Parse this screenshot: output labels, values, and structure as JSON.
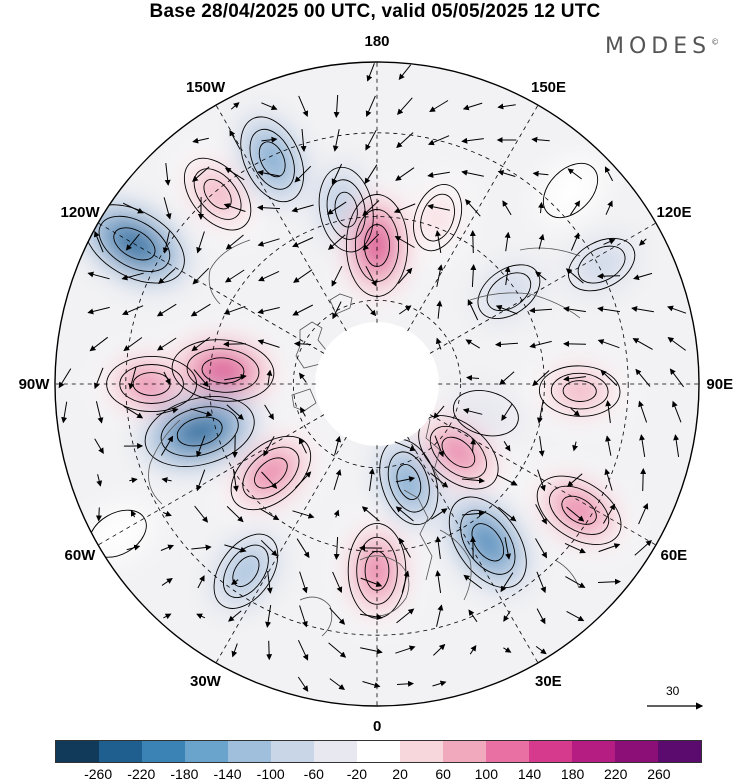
{
  "title": "Base 28/04/2025 00 UTC, valid 05/05/2025 12 UTC",
  "brand": "MODES",
  "brand_mark": "©",
  "longitude_labels": [
    "180",
    "150E",
    "120E",
    "90E",
    "60E",
    "30E",
    "0",
    "30W",
    "60W",
    "90W",
    "120W",
    "150W"
  ],
  "reference_vector": "30",
  "colorbar": {
    "colors": [
      "#10395a",
      "#1f5f8f",
      "#3b82b5",
      "#6aa3cc",
      "#9fbfdc",
      "#c9d6e8",
      "#e8e8f0",
      "#ffffff",
      "#f7d6dc",
      "#f1a9bd",
      "#e870a3",
      "#d63a8d",
      "#b51d83",
      "#8c0f78",
      "#5b0a6e"
    ],
    "tick_labels": [
      "-260",
      "-220",
      "-180",
      "-140",
      "-100",
      "-60",
      "-20",
      "20",
      "60",
      "100",
      "140",
      "180",
      "220",
      "260"
    ]
  },
  "anomaly_centers": [
    {
      "lon": -155,
      "dist": 0.77,
      "value": -150
    },
    {
      "lon": -170,
      "dist": 0.55,
      "value": -130
    },
    {
      "lon": -180,
      "dist": 0.43,
      "value": 200
    },
    {
      "lon": -140,
      "dist": 0.77,
      "value": 120
    },
    {
      "lon": -120,
      "dist": 0.87,
      "value": -230
    },
    {
      "lon": -90,
      "dist": 0.7,
      "value": 150
    },
    {
      "lon": -95,
      "dist": 0.48,
      "value": 200
    },
    {
      "lon": -75,
      "dist": 0.57,
      "value": -240
    },
    {
      "lon": -50,
      "dist": 0.43,
      "value": 160
    },
    {
      "lon": -35,
      "dist": 0.71,
      "value": -120
    },
    {
      "lon": 0,
      "dist": 0.58,
      "value": 170
    },
    {
      "lon": 18,
      "dist": 0.32,
      "value": -140
    },
    {
      "lon": 35,
      "dist": 0.6,
      "value": -200
    },
    {
      "lon": 58,
      "dist": 0.74,
      "value": 160
    },
    {
      "lon": 50,
      "dist": 0.33,
      "value": 160
    },
    {
      "lon": 88,
      "dist": 0.63,
      "value": 110
    },
    {
      "lon": 125,
      "dist": 0.5,
      "value": -60
    },
    {
      "lon": 118,
      "dist": 0.79,
      "value": -70
    },
    {
      "lon": 135,
      "dist": 0.85,
      "value": 40
    },
    {
      "lon": 160,
      "dist": 0.55,
      "value": 60
    },
    {
      "lon": -60,
      "dist": 0.93,
      "value": 30
    },
    {
      "lon": 75,
      "dist": 0.35,
      "value": -50
    }
  ]
}
